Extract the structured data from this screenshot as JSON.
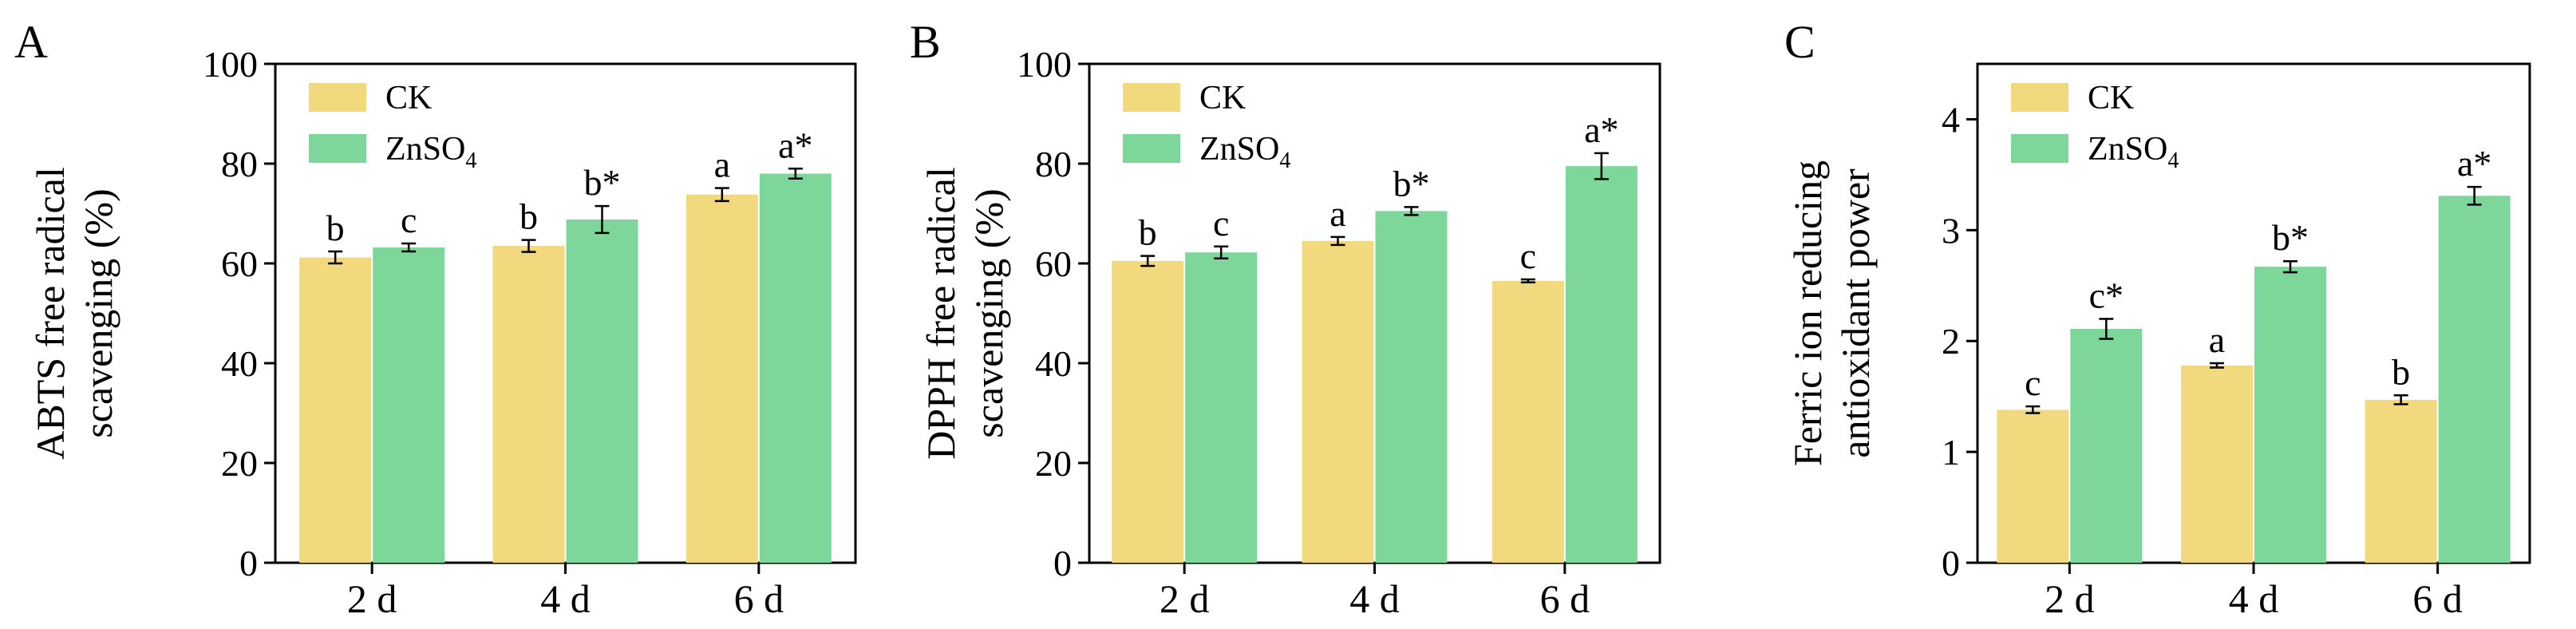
{
  "colors": {
    "CK": "#F2D97E",
    "ZnSO4": "#7ED79A",
    "axis": "#000000"
  },
  "legend": [
    {
      "key": "CK",
      "label": "CK",
      "sub": ""
    },
    {
      "key": "ZnSO4",
      "label": "ZnSO",
      "sub": "4"
    }
  ],
  "chart_data": [
    {
      "type": "bar",
      "panel": "A",
      "ylabel_lines": [
        "ABTS free radical",
        "scavenging (%)"
      ],
      "categories": [
        "2 d",
        "4 d",
        "6 d"
      ],
      "ylim": [
        0,
        100
      ],
      "yticks": [
        0,
        20,
        40,
        60,
        80,
        100
      ],
      "legend_position": "top-left",
      "series": [
        {
          "name": "CK",
          "values": [
            61.2,
            63.5,
            73.8
          ],
          "errors": [
            1.2,
            1.2,
            1.3
          ],
          "labels": [
            "b",
            "b",
            "a"
          ]
        },
        {
          "name": "ZnSO4",
          "values": [
            63.2,
            68.8,
            78.0
          ],
          "errors": [
            0.8,
            2.7,
            1.0
          ],
          "labels": [
            "c",
            "b*",
            "a*"
          ]
        }
      ]
    },
    {
      "type": "bar",
      "panel": "B",
      "ylabel_lines": [
        "DPPH free radical",
        "scavenging (%)"
      ],
      "categories": [
        "2 d",
        "4 d",
        "6 d"
      ],
      "ylim": [
        0,
        100
      ],
      "yticks": [
        0,
        20,
        40,
        60,
        80,
        100
      ],
      "legend_position": "top-left",
      "series": [
        {
          "name": "CK",
          "values": [
            60.5,
            64.5,
            56.5
          ],
          "errors": [
            1.0,
            0.8,
            0.3
          ],
          "labels": [
            "b",
            "a",
            "c"
          ]
        },
        {
          "name": "ZnSO4",
          "values": [
            62.2,
            70.5,
            79.5
          ],
          "errors": [
            1.2,
            0.8,
            2.6
          ],
          "labels": [
            "c",
            "b*",
            "a*"
          ]
        }
      ]
    },
    {
      "type": "bar",
      "panel": "C",
      "ylabel_lines": [
        "Ferric ion reducing",
        "antioxidant power"
      ],
      "categories": [
        "2 d",
        "4 d",
        "6 d"
      ],
      "ylim": [
        0,
        4.5
      ],
      "yticks": [
        0,
        1,
        2,
        3,
        4
      ],
      "legend_position": "top-left",
      "series": [
        {
          "name": "CK",
          "values": [
            1.38,
            1.78,
            1.47
          ],
          "errors": [
            0.03,
            0.02,
            0.04
          ],
          "labels": [
            "c",
            "a",
            "b"
          ]
        },
        {
          "name": "ZnSO4",
          "values": [
            2.11,
            2.67,
            3.31
          ],
          "errors": [
            0.09,
            0.05,
            0.08
          ],
          "labels": [
            "c*",
            "b*",
            "a*"
          ]
        }
      ]
    }
  ]
}
